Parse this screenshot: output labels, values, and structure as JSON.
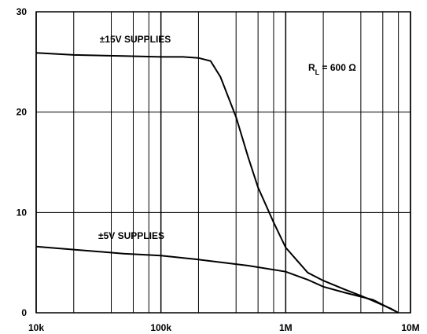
{
  "chart_data": {
    "type": "line",
    "x_scale": "log",
    "xlim": [
      10000,
      10000000
    ],
    "xticks": [
      {
        "value": 10000,
        "label": "10k"
      },
      {
        "value": 100000,
        "label": "100k"
      },
      {
        "value": 1000000,
        "label": "1M"
      },
      {
        "value": 10000000,
        "label": "10M"
      }
    ],
    "xminor": [
      20000,
      40000,
      60000,
      80000,
      200000,
      400000,
      600000,
      800000,
      2000000,
      4000000,
      6000000,
      8000000
    ],
    "ylim": [
      0,
      30
    ],
    "yticks": [
      0,
      10,
      20,
      30
    ],
    "grid": true,
    "series": [
      {
        "name": "±15V SUPPLIES",
        "color": "#000000",
        "x": [
          10000,
          20000,
          50000,
          100000,
          150000,
          200000,
          250000,
          300000,
          400000,
          500000,
          600000,
          800000,
          1000000,
          1500000,
          2000000,
          3000000,
          4000000,
          5000000,
          7000000,
          8000000
        ],
        "values": [
          25.9,
          25.7,
          25.6,
          25.5,
          25.5,
          25.4,
          25.1,
          23.5,
          19.5,
          15.5,
          12.5,
          9,
          6.5,
          4,
          3.2,
          2.3,
          1.7,
          1.2,
          0.4,
          0
        ]
      },
      {
        "name": "±5V SUPPLIES",
        "color": "#000000",
        "x": [
          10000,
          20000,
          50000,
          100000,
          200000,
          500000,
          1000000,
          1500000,
          2000000,
          3000000,
          5000000,
          8000000
        ],
        "values": [
          6.6,
          6.3,
          5.9,
          5.7,
          5.3,
          4.7,
          4.1,
          3.3,
          2.6,
          2.0,
          1.3,
          0
        ]
      }
    ],
    "annotation": [
      "R",
      "L",
      " = 600 Ω"
    ]
  }
}
